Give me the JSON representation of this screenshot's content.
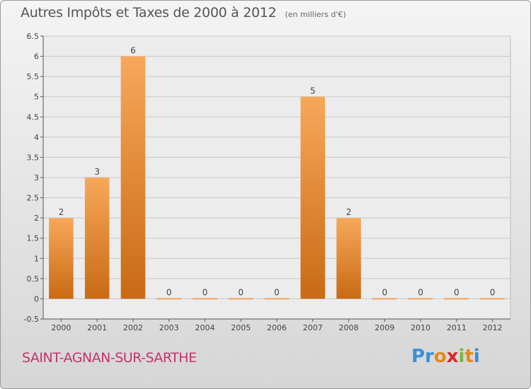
{
  "title": "Autres Impôts et Taxes de 2000 à 2012",
  "title_unit": "(en milliers d'€)",
  "commune": "SAINT-AGNAN-SUR-SARTHE",
  "logo": {
    "letters": [
      "P",
      "r",
      "o",
      "x",
      "i",
      "t",
      "i"
    ],
    "colors": [
      "#3a8fd6",
      "#3a8fd6",
      "#e38a1a",
      "#d9262c",
      "#7ab648",
      "#e38a1a",
      "#3a8fd6"
    ]
  },
  "colors": {
    "bar_top": "#f7a85a",
    "bar_bottom": "#c96a14",
    "zero_bar": "#f2a35b"
  },
  "chart_data": {
    "type": "bar",
    "categories": [
      "2000",
      "2001",
      "2002",
      "2003",
      "2004",
      "2005",
      "2006",
      "2007",
      "2008",
      "2009",
      "2010",
      "2011",
      "2012"
    ],
    "values": [
      2,
      3,
      6,
      0,
      0,
      0,
      0,
      5,
      2,
      0,
      0,
      0,
      0
    ],
    "data_labels": [
      "2",
      "3",
      "6",
      "0",
      "0",
      "0",
      "0",
      "5",
      "2",
      "0",
      "0",
      "0",
      "0"
    ],
    "y_ticks": [
      -0.5,
      0,
      0.5,
      1,
      1.5,
      2,
      2.5,
      3,
      3.5,
      4,
      4.5,
      5,
      5.5,
      6,
      6.5
    ],
    "y_tick_labels": [
      "-0.5",
      "0",
      "0.5",
      "1",
      "1.5",
      "2",
      "2.5",
      "3",
      "3.5",
      "4",
      "4.5",
      "5",
      "5.5",
      "6",
      "6.5"
    ],
    "ylim": [
      -0.5,
      6.5
    ],
    "grid": true,
    "xlabel": "",
    "ylabel": ""
  }
}
